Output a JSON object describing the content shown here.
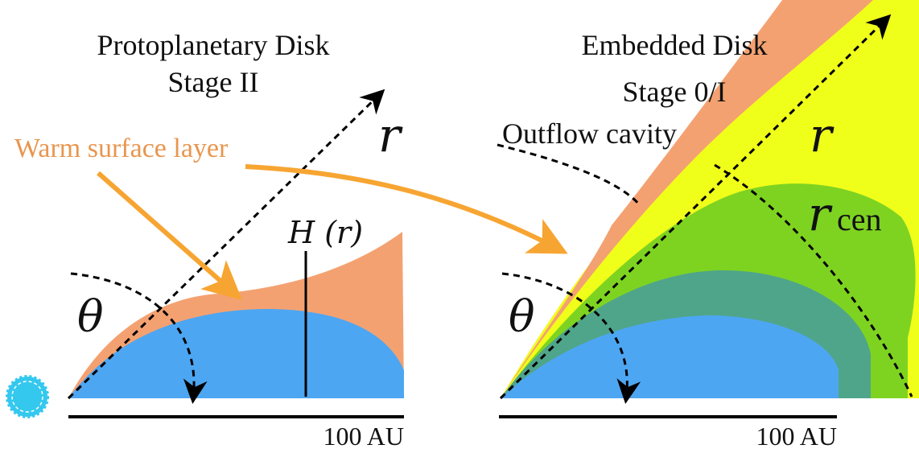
{
  "left_panel": {
    "title_line1": "Protoplanetary Disk",
    "title_line2": "Stage II",
    "radial_symbol": "r",
    "angle_symbol": "θ",
    "scale_height_label": "H (r)",
    "scale_bar_label": "100 AU",
    "surface_layer_label": "Warm surface layer"
  },
  "right_panel": {
    "title_line1": "Embedded Disk",
    "title_line2": "Stage 0/I",
    "cavity_label": "Outflow cavity",
    "radial_symbol": "r",
    "centrifugal_symbol": "r",
    "centrifugal_subscript": "cen",
    "angle_symbol": "θ",
    "scale_bar_label": "100 AU"
  },
  "colors": {
    "disk_blue": "#4da6f2",
    "warm_layer_orange": "#f4a171",
    "annotation_orange": "#f7a532",
    "label_orange": "#e8964f",
    "envelope_yellow": "#f0ff1a",
    "envelope_green": "#7ed321",
    "teal": "#4fa58a",
    "star_cyan": "#34c8ee"
  }
}
